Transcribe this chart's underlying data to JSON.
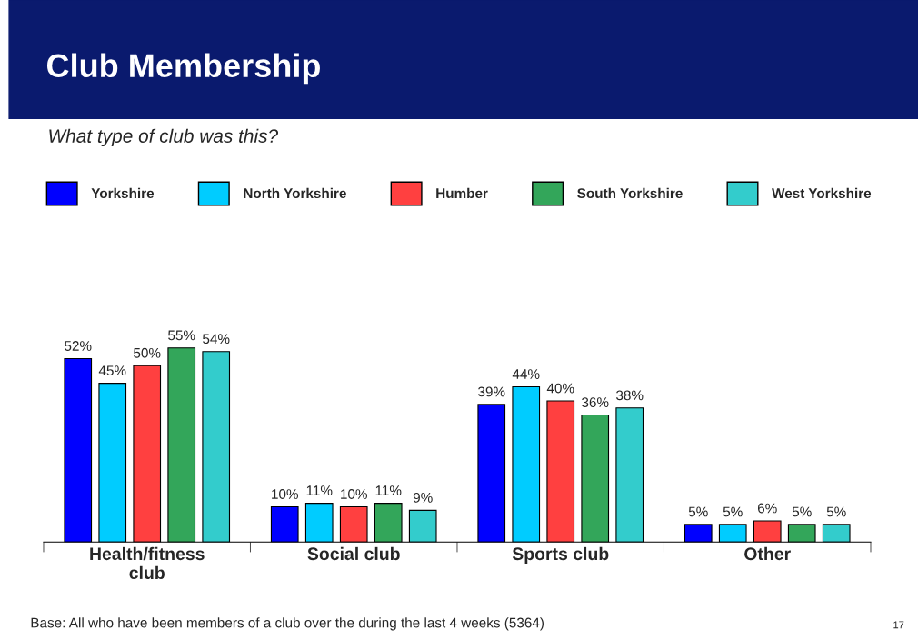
{
  "chart_data": {
    "type": "bar",
    "title": "Club Membership",
    "subtitle": "What type of club was this?",
    "categories": [
      "Health/fitness club",
      "Social club",
      "Sports club",
      "Other"
    ],
    "series": [
      {
        "name": "Yorkshire",
        "color": "#0000ff",
        "values": [
          52,
          10,
          39,
          5
        ],
        "value_labels": [
          "52%",
          "10%",
          "39%",
          "5%"
        ]
      },
      {
        "name": "North Yorkshire",
        "color": "#00ccff",
        "values": [
          45,
          11,
          44,
          5
        ],
        "value_labels": [
          "45%",
          "11%",
          "44%",
          "5%"
        ]
      },
      {
        "name": "Humber",
        "color": "#ff4040",
        "values": [
          50,
          10,
          40,
          6
        ],
        "value_labels": [
          "50%",
          "10%",
          "40%",
          "6%"
        ]
      },
      {
        "name": "South Yorkshire",
        "color": "#33a65a",
        "values": [
          55,
          11,
          36,
          5
        ],
        "value_labels": [
          "55%",
          "11%",
          "36%",
          "5%"
        ]
      },
      {
        "name": "West Yorkshire",
        "color": "#33cccc",
        "values": [
          54,
          9,
          38,
          5
        ],
        "value_labels": [
          "54%",
          "9%",
          "38%",
          "5%"
        ]
      }
    ],
    "legend": "top",
    "grid": false,
    "annotations": [
      "Base: All who have been members of a club over the during the last 4 weeks (5364)",
      "17"
    ]
  }
}
